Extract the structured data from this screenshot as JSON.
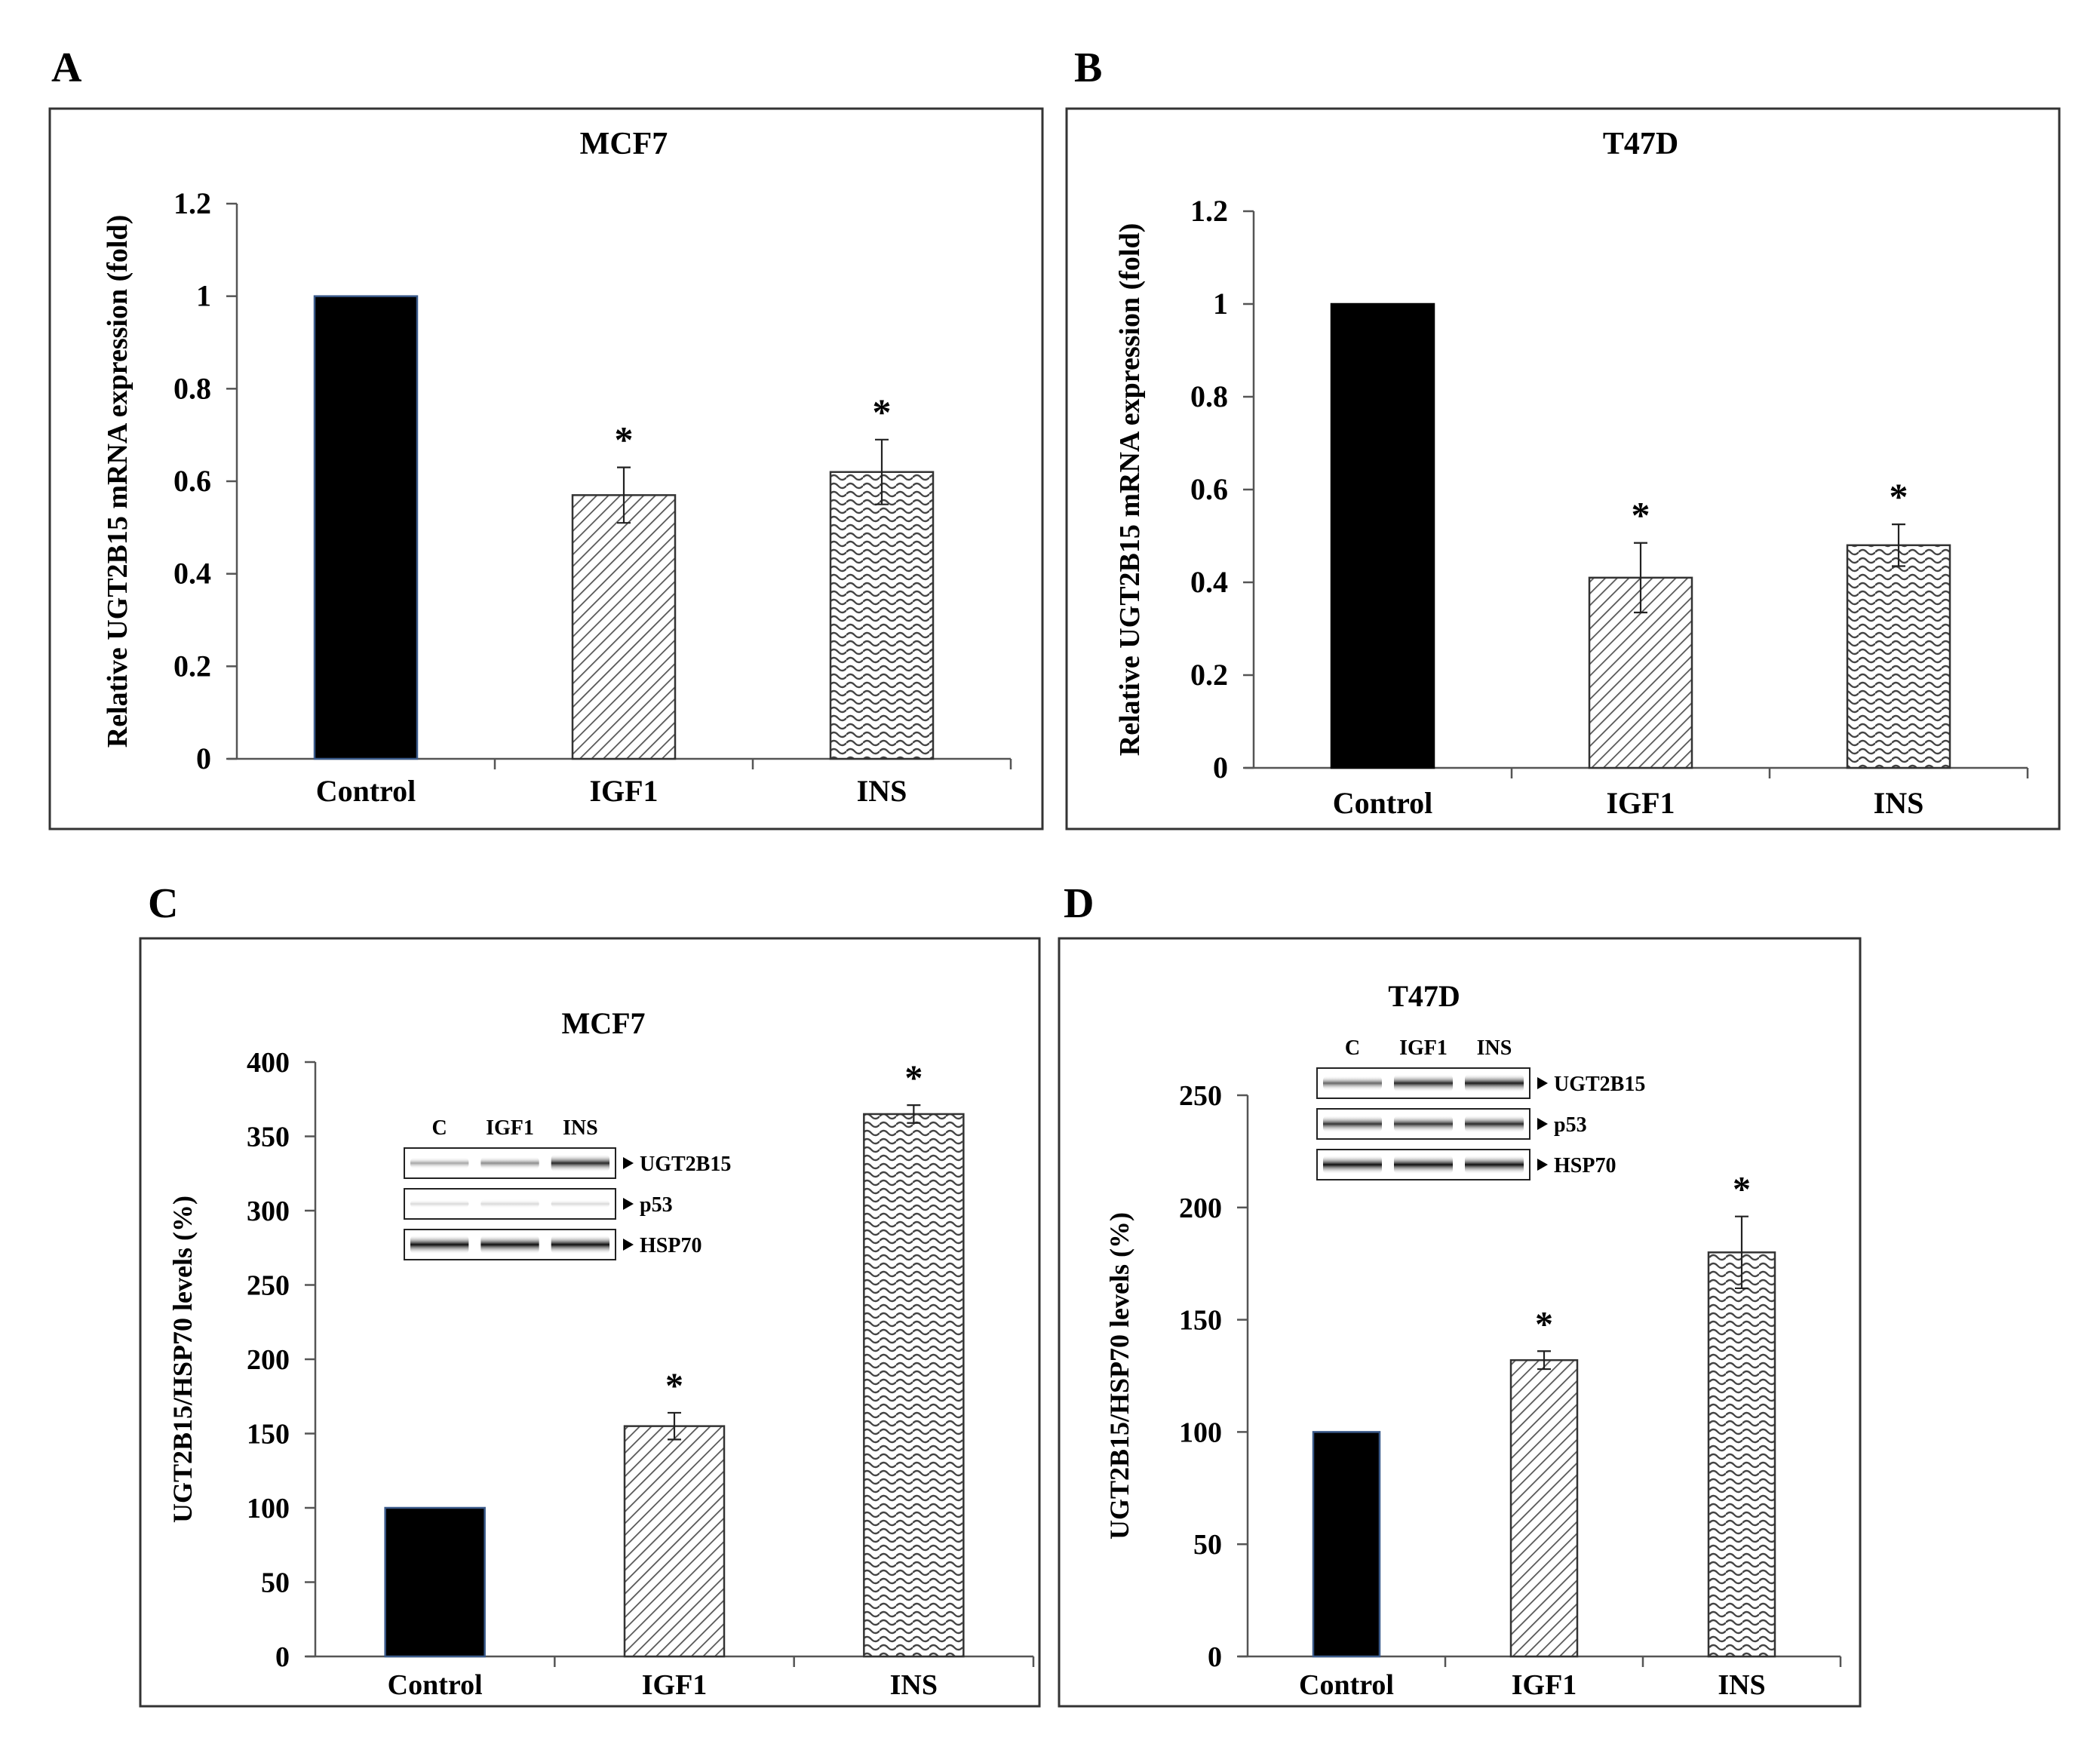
{
  "figure": {
    "panel_letters": [
      "A",
      "B",
      "C",
      "D"
    ]
  },
  "colors": {
    "control": "#000000",
    "pattern": "#555555",
    "frame": "#333333"
  },
  "chart_data": [
    {
      "panel": "A",
      "type": "bar",
      "title": "MCF7",
      "ylabel": "Relative UGT2B15 mRNA expression (fold)",
      "xlabel": "",
      "categories": [
        "Control",
        "IGF1",
        "INS"
      ],
      "values": [
        1.0,
        0.57,
        0.62
      ],
      "errors": [
        0.0,
        0.06,
        0.07
      ],
      "significance": [
        "",
        "*",
        "*"
      ],
      "ylim": [
        0,
        1.2
      ],
      "yticks": [
        "0",
        "0.2",
        "0.4",
        "0.6",
        "0.8",
        "1",
        "1.2"
      ],
      "yticks_values": [
        0,
        0.2,
        0.4,
        0.6,
        0.8,
        1,
        1.2
      ],
      "grid": false,
      "legend": "none",
      "fills": [
        "solid",
        "diagonal",
        "wave"
      ]
    },
    {
      "panel": "B",
      "type": "bar",
      "title": "T47D",
      "ylabel": "Relative UGT2B15 mRNA expression (fold)",
      "xlabel": "",
      "categories": [
        "Control",
        "IGF1",
        "INS"
      ],
      "values": [
        1.0,
        0.41,
        0.48
      ],
      "errors": [
        0.0,
        0.075,
        0.045
      ],
      "significance": [
        "",
        "*",
        "*"
      ],
      "ylim": [
        0,
        1.2
      ],
      "yticks": [
        "0",
        "0.2",
        "0.4",
        "0.6",
        "0.8",
        "1",
        "1.2"
      ],
      "yticks_values": [
        0,
        0.2,
        0.4,
        0.6,
        0.8,
        1,
        1.2
      ],
      "grid": false,
      "legend": "none",
      "fills": [
        "solid",
        "diagonal",
        "wave"
      ]
    },
    {
      "panel": "C",
      "type": "bar",
      "title": "MCF7",
      "ylabel": "UGT2B15/HSP70 levels (%)",
      "xlabel": "",
      "categories": [
        "Control",
        "IGF1",
        "INS"
      ],
      "values": [
        100,
        155,
        365
      ],
      "errors": [
        0,
        9,
        6
      ],
      "significance": [
        "",
        "*",
        "*"
      ],
      "ylim": [
        0,
        400
      ],
      "yticks": [
        "0",
        "50",
        "100",
        "150",
        "200",
        "250",
        "300",
        "350",
        "400"
      ],
      "yticks_values": [
        0,
        50,
        100,
        150,
        200,
        250,
        300,
        350,
        400
      ],
      "grid": false,
      "legend": "none",
      "fills": [
        "solid",
        "diagonal",
        "wave"
      ],
      "blot": {
        "lanes": [
          "C",
          "IGF1",
          "INS"
        ],
        "bands": [
          "UGT2B15",
          "p53",
          "HSP70"
        ],
        "intensity": [
          [
            0.35,
            0.45,
            0.85
          ],
          [
            0.1,
            0.15,
            0.1
          ],
          [
            0.95,
            0.95,
            0.95
          ]
        ]
      }
    },
    {
      "panel": "D",
      "type": "bar",
      "title": "T47D",
      "ylabel": "UGT2B15/HSP70 levels (%)",
      "xlabel": "",
      "categories": [
        "Control",
        "IGF1",
        "INS"
      ],
      "values": [
        100,
        132,
        180
      ],
      "errors": [
        0,
        4,
        16
      ],
      "significance": [
        "",
        "*",
        "*"
      ],
      "ylim": [
        0,
        250
      ],
      "yticks": [
        "0",
        "50",
        "100",
        "150",
        "200",
        "250"
      ],
      "yticks_values": [
        0,
        50,
        100,
        150,
        200,
        250
      ],
      "grid": false,
      "legend": "none",
      "fills": [
        "solid",
        "diagonal",
        "wave"
      ],
      "blot": {
        "lanes": [
          "C",
          "IGF1",
          "INS"
        ],
        "bands": [
          "UGT2B15",
          "p53",
          "HSP70"
        ],
        "intensity": [
          [
            0.6,
            0.85,
            0.9
          ],
          [
            0.8,
            0.8,
            0.85
          ],
          [
            0.95,
            0.95,
            0.95
          ]
        ]
      }
    }
  ]
}
